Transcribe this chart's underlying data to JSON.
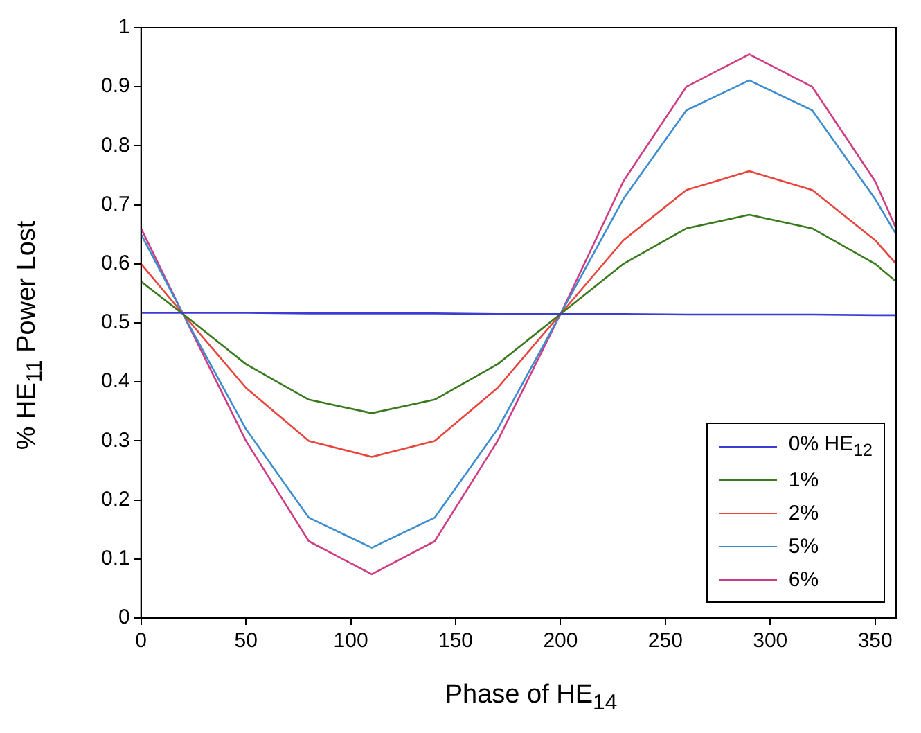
{
  "chart_data": {
    "type": "line",
    "xlabel": "Phase of HE$_{14}$",
    "ylabel": "% HE$_{11}$ Power Lost",
    "x": [
      0,
      20,
      50,
      80,
      110,
      140,
      170,
      200,
      230,
      260,
      290,
      320,
      350,
      360
    ],
    "xlim": [
      0,
      360
    ],
    "xticks": [
      0,
      50,
      100,
      150,
      200,
      250,
      300,
      350
    ],
    "ylim": [
      0,
      1
    ],
    "yticks": [
      0,
      0.1,
      0.2,
      0.3,
      0.4,
      0.5,
      0.6,
      0.7,
      0.8,
      0.9,
      1
    ],
    "grid": false,
    "legend": "bottom right",
    "marker": "none",
    "line_style": "solid",
    "series": [
      {
        "name": "0% HE$_{12}$",
        "color": "#3c3cd4",
        "values": [
          0.517,
          0.517,
          0.517,
          0.516,
          0.516,
          0.516,
          0.515,
          0.515,
          0.515,
          0.514,
          0.514,
          0.514,
          0.513,
          0.513
        ]
      },
      {
        "name": "1%",
        "color": "#3a7a1e",
        "values": [
          0.57,
          0.515,
          0.43,
          0.37,
          0.347,
          0.37,
          0.43,
          0.515,
          0.6,
          0.66,
          0.683,
          0.66,
          0.6,
          0.57
        ]
      },
      {
        "name": "2%",
        "color": "#e8443c",
        "values": [
          0.6,
          0.515,
          0.39,
          0.3,
          0.273,
          0.3,
          0.39,
          0.515,
          0.64,
          0.725,
          0.757,
          0.725,
          0.64,
          0.6
        ]
      },
      {
        "name": "5%",
        "color": "#3c8cd0",
        "values": [
          0.65,
          0.515,
          0.32,
          0.17,
          0.119,
          0.17,
          0.32,
          0.515,
          0.71,
          0.86,
          0.911,
          0.86,
          0.71,
          0.65
        ]
      },
      {
        "name": "6%",
        "color": "#d03c84",
        "values": [
          0.66,
          0.515,
          0.3,
          0.13,
          0.074,
          0.13,
          0.3,
          0.515,
          0.74,
          0.9,
          0.955,
          0.9,
          0.74,
          0.66
        ]
      }
    ]
  }
}
